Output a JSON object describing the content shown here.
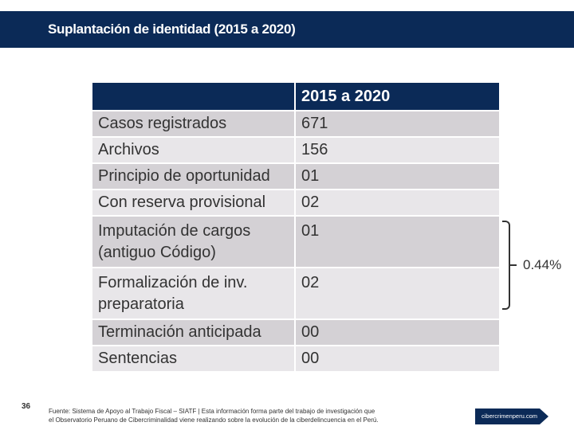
{
  "header": {
    "title": "Suplantación de identidad (2015 a 2020)"
  },
  "table": {
    "column_headers": [
      "",
      "2015 a 2020"
    ],
    "rows": [
      {
        "label": "Casos registrados",
        "value": "671"
      },
      {
        "label": "Archivos",
        "value": "156"
      },
      {
        "label": "Principio de oportunidad",
        "value": "01"
      },
      {
        "label": "Con reserva provisional",
        "value": "02"
      },
      {
        "label_line1": "Imputación de cargos",
        "label_line2": "(antiguo Código)",
        "value": "01"
      },
      {
        "label_line1": "Formalización de inv.",
        "label_line2": "preparatoria",
        "value": "02"
      },
      {
        "label": "Terminación anticipada",
        "value": "00"
      },
      {
        "label": "Sentencias",
        "value": "00"
      }
    ]
  },
  "bracket": {
    "label": "0.44%"
  },
  "footer": {
    "page_number": "36",
    "note_line1": "Fuente: Sistema de Apoyo al Trabajo Fiscal – SIATF | Esta información forma parte del trabajo de investigación que",
    "note_line2": "el Observatorio Peruano de Cibercriminalidad viene realizando sobre la evolución de la ciberdelincuencia en el Perú.",
    "logo_text": "cibercrimenperu.com"
  },
  "colors": {
    "navy": "#0b2a57",
    "row_dark": "#d4d1d5",
    "row_light": "#e8e6e9",
    "text": "#333333"
  }
}
